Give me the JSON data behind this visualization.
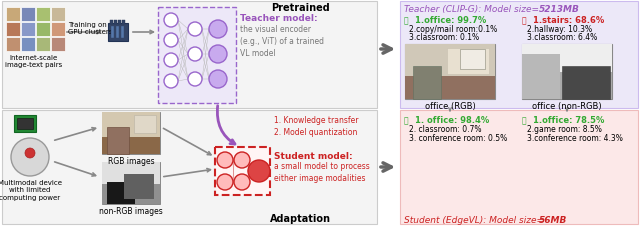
{
  "title_pretrained": "Pretrained",
  "title_adaptation": "Adaptation",
  "teacher_label": "Teacher (CLIP-G): Model size=",
  "teacher_size": "5213MB",
  "student_label": "Student (EdgeVL): Model size=",
  "student_size": "56MB",
  "teacher_model_title": "Teacher model:",
  "teacher_model_desc": "the visual encoder\n(e.g., ViT) of a trained\nVL model",
  "student_model_title": "Student model:",
  "student_model_desc": "a small model to process\neither image modalities",
  "left_top_text": "Training on\nGPU clusters",
  "left_top_bottom": "Internet-scale\nimage-text pairs",
  "left_bot_bottom": "Multimodal device\nwith limited\ncomputing power",
  "rgb_label": "RGB images",
  "nonrgb_label": "non-RGB images",
  "knowledge_text": "1. Knowledge transfer\n2. Model quantization",
  "office_rgb_label": "office (RGB)",
  "office_nonrgb_label": "office (non-RGB)",
  "rgb_pred1": "1.office: 99.7%",
  "rgb_pred2": "2.copy/mail room:0.1%",
  "rgb_pred3": "3.classroom: 0.1%",
  "nonrgb_pred1": "1.stairs: 68.6%",
  "nonrgb_pred2": "2.hallway: 10.3%",
  "nonrgb_pred3": "3.classroom: 6.4%",
  "rgb_pred1b": "1. office: 98.4%",
  "rgb_pred2b": "2. classroom: 0.7%",
  "rgb_pred3b": "3. conference room: 0.5%",
  "nonrgb_pred1b": "1.office: 78.5%",
  "nonrgb_pred2b": "2.game room: 8.5%",
  "nonrgb_pred3b": "3.conference room: 4.3%",
  "teacher_bg": "#ece8f8",
  "student_bg": "#fce8e8",
  "purple": "#9955bb",
  "red": "#cc2222",
  "green": "#33aa33",
  "gray": "#777777",
  "panel_top_bg": "#f4f4f4",
  "panel_top_ec": "#cccccc",
  "nn_box_bg": "#ede8f8",
  "nn_box_ec": "#9966cc"
}
